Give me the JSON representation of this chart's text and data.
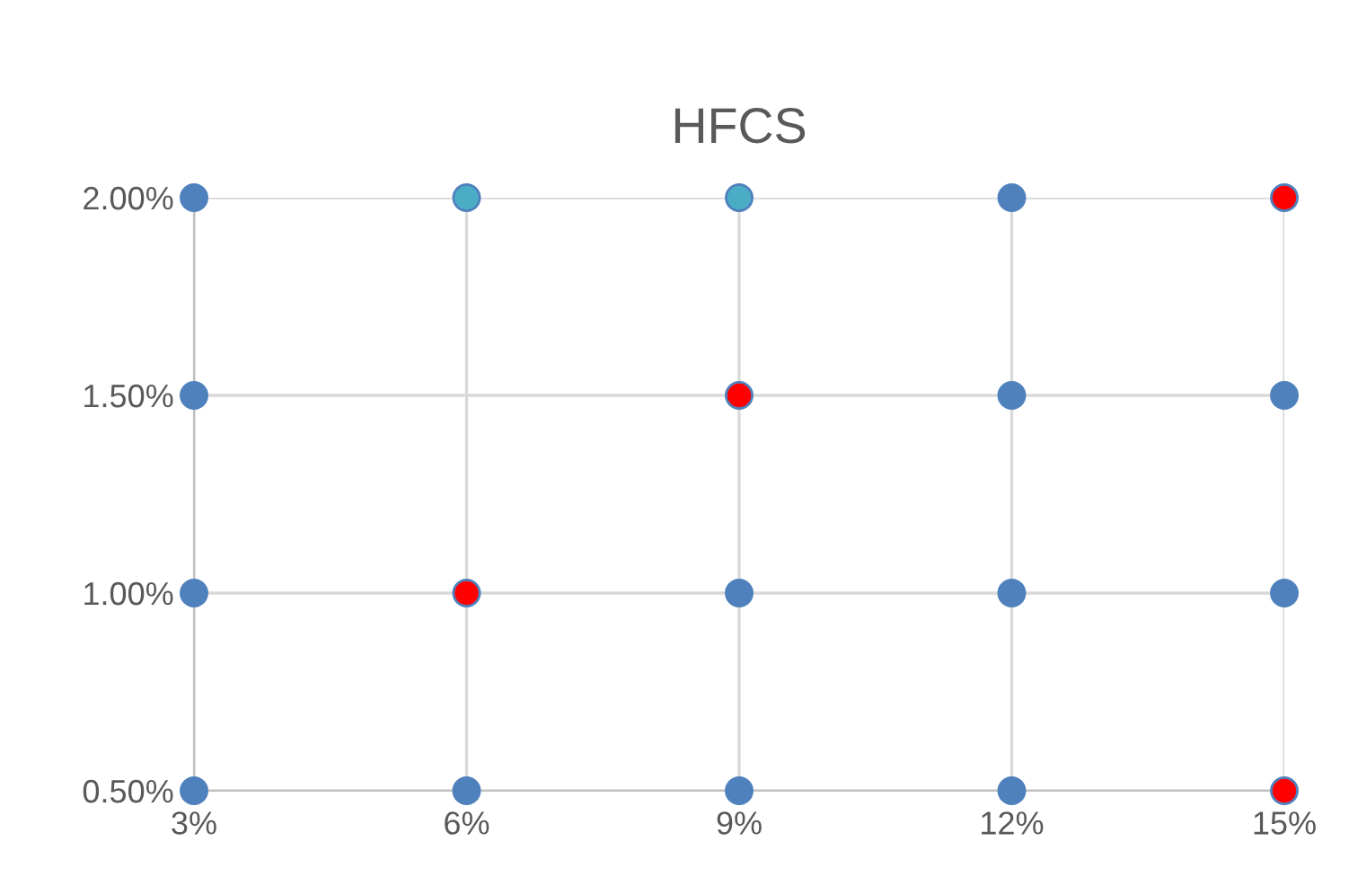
{
  "chart_data": {
    "type": "scatter",
    "title": "HFCS",
    "series": [
      {
        "color": "#4f81bd",
        "x": [
          3,
          6,
          9,
          12,
          3,
          9,
          12,
          15,
          3,
          12,
          15,
          3,
          12
        ],
        "values": [
          0.5,
          0.5,
          0.5,
          0.5,
          1,
          1,
          1,
          1,
          1.5,
          1.5,
          1.5,
          2,
          2
        ]
      },
      {
        "color": "#4bacc6",
        "x": [
          6,
          9
        ],
        "values": [
          2,
          2
        ]
      },
      {
        "color": "#ff0000",
        "x": [
          15,
          9,
          6,
          15
        ],
        "values": [
          0.5,
          1.5,
          1,
          2
        ]
      }
    ],
    "xlim": [
      3,
      15
    ],
    "ylim": [
      0.5,
      2
    ],
    "xticks": [
      {
        "value": 3,
        "label": "3%"
      },
      {
        "value": 6,
        "label": "6%"
      },
      {
        "value": 9,
        "label": "9%"
      },
      {
        "value": 12,
        "label": "12%"
      },
      {
        "value": 15,
        "label": "15%"
      }
    ],
    "yticks": [
      {
        "value": 0.5,
        "label": "0.50%"
      },
      {
        "value": 1,
        "label": "1.00%"
      },
      {
        "value": 1.5,
        "label": "1.50%"
      },
      {
        "value": 2,
        "label": "2.00%"
      }
    ],
    "grid": true,
    "marker": "circle",
    "legend": false
  }
}
